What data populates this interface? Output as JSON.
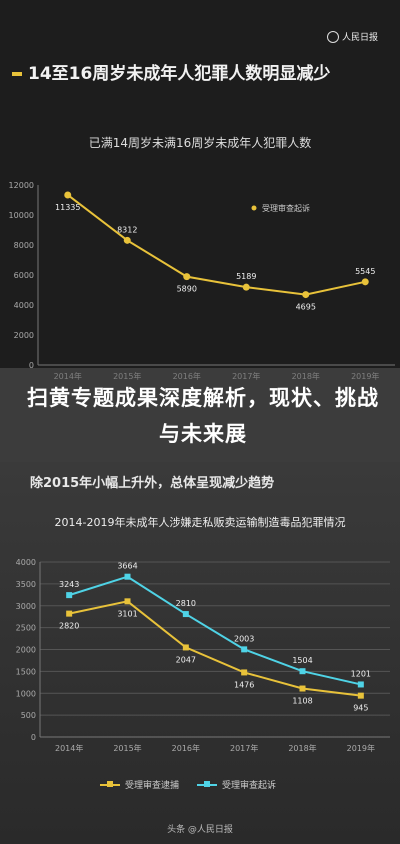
{
  "brand": {
    "name": "人民日报"
  },
  "section1": {
    "heading": "14至16周岁未成年人犯罪人数明显减少"
  },
  "overlay": {
    "title": "扫黄专题成果深度解析，现状、挑战与未来展"
  },
  "section2": {
    "heading": "除2015年小幅上升外，总体呈现减少趋势"
  },
  "footer": {
    "text": "头条 @人民日报"
  },
  "colors": {
    "yellow": "#e8c23a",
    "cyan": "#4fd3e6"
  },
  "chart_data": [
    {
      "type": "line",
      "title": "已满14周岁未满16周岁未成年人犯罪人数",
      "x": [
        "2014年",
        "2015年",
        "2016年",
        "2017年",
        "2018年",
        "2019年"
      ],
      "series": [
        {
          "name": "受理审查起诉",
          "values": [
            11335,
            8312,
            5890,
            5189,
            4695,
            5545
          ],
          "color": "#e8c23a"
        }
      ],
      "ylim": [
        0,
        12000
      ],
      "yticks": [
        0,
        2000,
        4000,
        6000,
        8000,
        10000,
        12000
      ],
      "grid": false,
      "legend": "top-right"
    },
    {
      "type": "line",
      "title": "2014-2019年未成年人涉嫌走私贩卖运输制造毒品犯罪情况",
      "x": [
        "2014年",
        "2015年",
        "2016年",
        "2017年",
        "2018年",
        "2019年"
      ],
      "series": [
        {
          "name": "受理审查逮捕",
          "values": [
            2820,
            3101,
            2047,
            1476,
            1108,
            945
          ],
          "color": "#e8c23a"
        },
        {
          "name": "受理审查起诉",
          "values": [
            3243,
            3664,
            2810,
            2003,
            1504,
            1201
          ],
          "color": "#4fd3e6"
        }
      ],
      "ylim": [
        0,
        4000
      ],
      "yticks": [
        0,
        500,
        1000,
        1500,
        2000,
        2500,
        3000,
        3500,
        4000
      ],
      "grid": true,
      "legend": "bottom"
    }
  ]
}
